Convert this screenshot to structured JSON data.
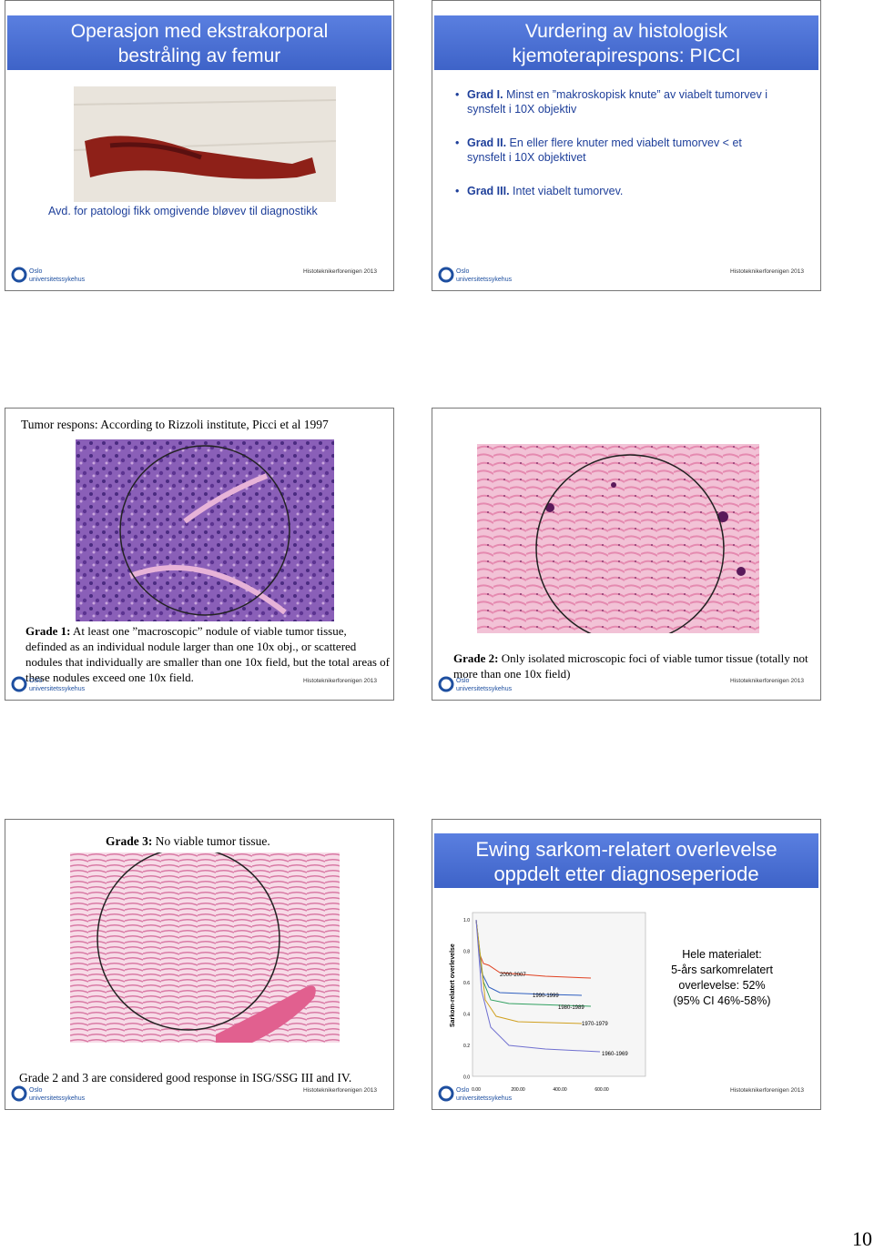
{
  "slides": [
    {
      "title": [
        "Operasjon med ekstrakorporal",
        "bestråling av femur"
      ],
      "caption": "Avd. for patologi fikk omgivende bløvev til diagnostikk",
      "logo": [
        "Oslo",
        "universitetssykehus"
      ],
      "footer": "Histoteknikerforenigen 2013"
    },
    {
      "title": [
        "Vurdering av histologisk",
        "kjemoterapirespons: PICCI"
      ],
      "bullets": [
        {
          "label": "Grad I.",
          "text": " Minst en ”makroskopisk knute” av viabelt tumorvev i synsfelt i 10X objektiv"
        },
        {
          "label": "Grad II.",
          "text": " En eller flere knuter med viabelt tumorvev < et synsfelt i 10X objektivet"
        },
        {
          "label": "Grad III.",
          "text": " Intet viabelt tumorvev."
        }
      ],
      "logo": [
        "Oslo",
        "universitetssykehus"
      ],
      "footer": "Histoteknikerforenigen 2013"
    },
    {
      "heading": "Tumor respons: According to Rizzoli institute, Picci et al 1997",
      "grade": {
        "label": "Grade 1:",
        "text": " At least one ”macroscopic” nodule of viable tumor tissue, definded as an individual nodule larger than one 10x obj., or scattered nodules that individually are smaller than one 10x field, but the total areas of these nodules exceed one 10x field."
      },
      "logo": [
        "Oslo",
        "universitetssykehus"
      ],
      "footer": "Histoteknikerforenigen 2013"
    },
    {
      "grade": {
        "label": "Grade 2:",
        "text": " Only isolated microscopic foci of viable tumor tissue (totally not more than one 10x field)"
      },
      "logo": [
        "Oslo",
        "universitetssykehus"
      ],
      "footer": "Histoteknikerforenigen 2013"
    },
    {
      "grade": {
        "label": "Grade 3:",
        "text": " No viable tumor tissue."
      },
      "note": "Grade 2 and 3 are considered good response in ISG/SSG III and IV.",
      "logo": [
        "Oslo",
        "universitetssykehus"
      ],
      "footer": "Histoteknikerforenigen 2013"
    },
    {
      "title": [
        "Ewing sarkom-relatert overlevelse",
        "oppdelt etter diagnoseperiode"
      ],
      "figure": {
        "y_label": "Sarkom-relatert overlevelse",
        "y_ticks": [
          "1.0",
          "0.8",
          "0.6",
          "0.4",
          "0.2",
          "0.0"
        ],
        "x_ticks": [
          "0.00",
          "200.00",
          "400.00",
          "600.00"
        ],
        "periods": [
          "2000-2007",
          "1990-1999",
          "1980-1989",
          "1970-1979",
          "1960-1969"
        ]
      },
      "box": [
        "Hele materialet:",
        "5-års sarkomrelatert",
        "overlevelse: 52%",
        "(95% CI 46%-58%)"
      ],
      "logo": [
        "Oslo",
        "universitetssykehus"
      ],
      "footer": "Histoteknikerforenigen 2013"
    }
  ],
  "page_number": "10"
}
